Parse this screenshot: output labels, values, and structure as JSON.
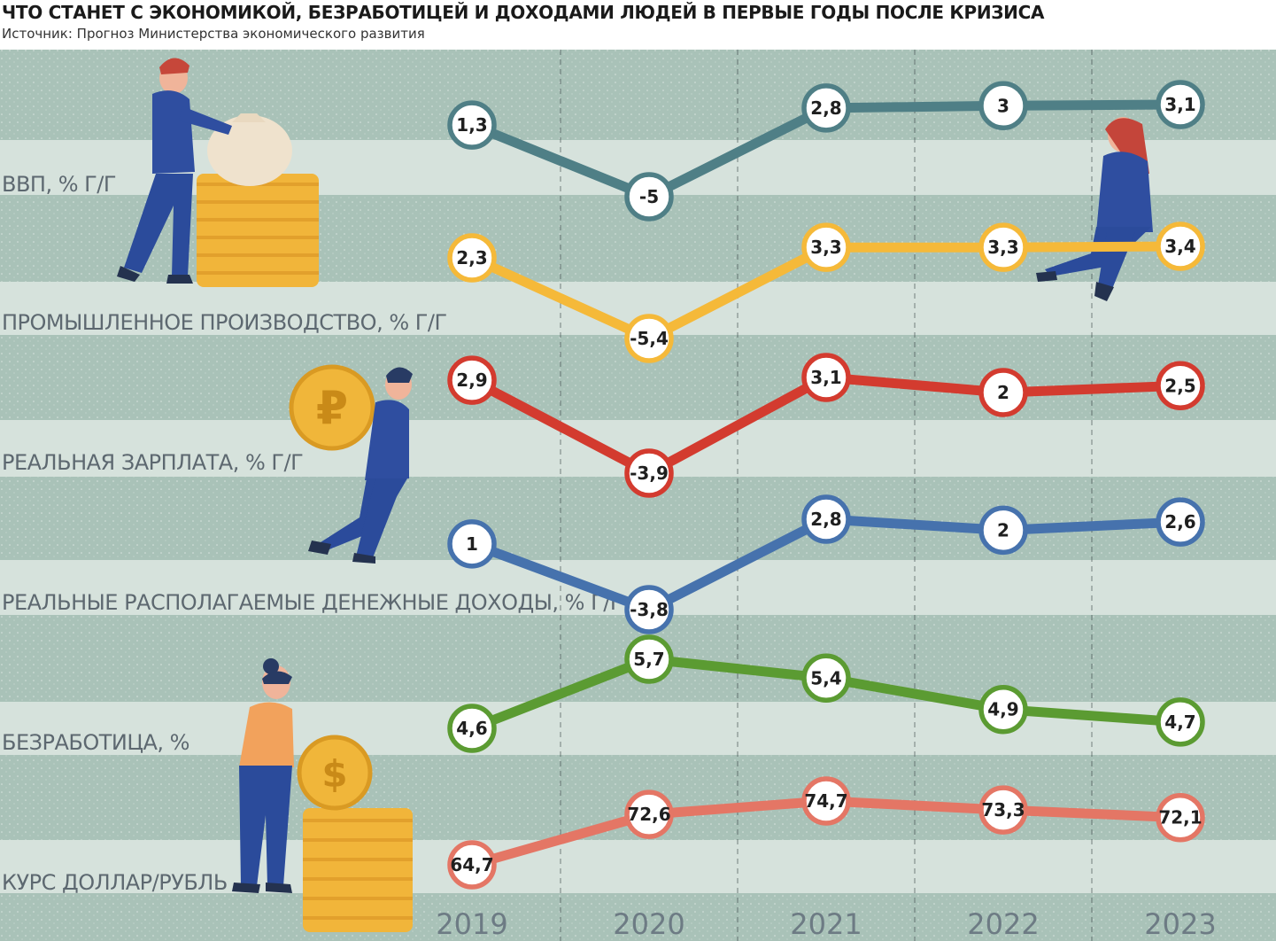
{
  "title": "ЧТО СТАНЕТ С ЭКОНОМИКОЙ, БЕЗРАБОТИЦЕЙ И ДОХОДАМИ ЛЮДЕЙ В ПЕРВЫЕ ГОДЫ ПОСЛЕ КРИЗИСА",
  "source": "Источник: Прогноз Министерства экономического развития",
  "colors": {
    "background_band": "#a9c2b8",
    "light_band": "#d6e2dc",
    "gdp": "#4f7f86",
    "industry": "#f5b939",
    "wage": "#d33b2f",
    "income": "#4672ad",
    "unemployment": "#5b9b32",
    "fx": "#e47665"
  },
  "icons": [
    "man-money-bag-icon",
    "woman-sitting-icon",
    "man-ruble-coin-icon",
    "woman-dollar-coin-icon"
  ],
  "chart_data": {
    "type": "line",
    "categories": [
      "2019",
      "2020",
      "2021",
      "2022",
      "2023"
    ],
    "series": [
      {
        "name": "ВВП, % Г/Г",
        "values": [
          1.3,
          -5,
          2.8,
          3,
          3.1
        ],
        "labels": [
          "1,3",
          "-5",
          "2,8",
          "3",
          "3,1"
        ]
      },
      {
        "name": "ПРОМЫШЛЕННОЕ ПРОИЗВОДСТВО, % Г/Г",
        "values": [
          2.3,
          -5.4,
          3.3,
          3.3,
          3.4
        ],
        "labels": [
          "2,3",
          "-5,4",
          "3,3",
          "3,3",
          "3,4"
        ]
      },
      {
        "name": "РЕАЛЬНАЯ ЗАРПЛАТА, % Г/Г",
        "values": [
          2.9,
          -3.9,
          3.1,
          2,
          2.5
        ],
        "labels": [
          "2,9",
          "-3,9",
          "3,1",
          "2",
          "2,5"
        ]
      },
      {
        "name": "РЕАЛЬНЫЕ РАСПОЛАГАЕМЫЕ ДЕНЕЖНЫЕ ДОХОДЫ, % Г/Г",
        "values": [
          1,
          -3.8,
          2.8,
          2,
          2.6
        ],
        "labels": [
          "1",
          "-3,8",
          "2,8",
          "2",
          "2,6"
        ]
      },
      {
        "name": "БЕЗРАБОТИЦА, %",
        "values": [
          4.6,
          5.7,
          5.4,
          4.9,
          4.7
        ],
        "labels": [
          "4,6",
          "5,7",
          "5,4",
          "4,9",
          "4,7"
        ]
      },
      {
        "name": "КУРС ДОЛЛАР/РУБЛЬ",
        "values": [
          64.7,
          72.6,
          74.7,
          73.3,
          72.1
        ],
        "labels": [
          "64,7",
          "72,6",
          "74,7",
          "73,3",
          "72,1"
        ]
      }
    ]
  }
}
